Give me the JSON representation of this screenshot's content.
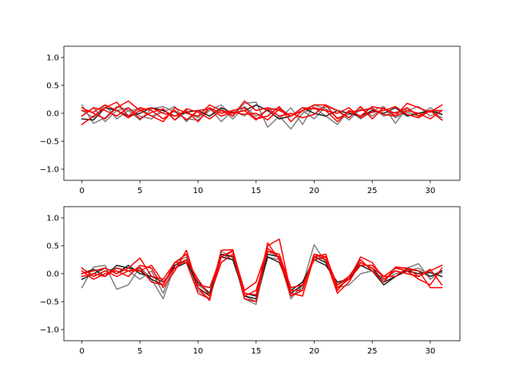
{
  "chart_data": [
    {
      "type": "line",
      "title": "",
      "xlabel": "",
      "ylabel": "",
      "xlim": [
        -1.55,
        32.55
      ],
      "ylim": [
        -1.2,
        1.2
      ],
      "xticks": [
        0,
        5,
        10,
        15,
        20,
        25,
        30
      ],
      "yticks": [
        -1.0,
        -0.5,
        0.0,
        0.5,
        1.0
      ],
      "ytick_labels": [
        "−1.0",
        "−0.5",
        "0.0",
        "0.5",
        "1.0"
      ],
      "grid": false,
      "colors": {
        "gray": "#808080",
        "black": "#222222",
        "red": "#ff0000"
      },
      "series": [
        {
          "color": "gray",
          "values": [
            0.15,
            -0.18,
            -0.08,
            0.12,
            0.05,
            -0.12,
            0.08,
            0.12,
            0.02,
            -0.1,
            -0.12,
            0.05,
            0.15,
            -0.05,
            0.18,
            0.2,
            -0.25,
            -0.05,
            -0.28,
            0.0,
            0.1,
            -0.05,
            -0.2,
            0.05,
            -0.1,
            0.05,
            0.12,
            -0.18,
            0.1,
            -0.05,
            0.05,
            -0.08
          ]
        },
        {
          "color": "gray",
          "values": [
            -0.05,
            0.1,
            -0.15,
            0.05,
            0.1,
            -0.05,
            -0.1,
            0.08,
            -0.12,
            0.02,
            -0.08,
            0.1,
            -0.15,
            0.05,
            -0.05,
            0.15,
            0.05,
            -0.1,
            0.1,
            -0.2,
            0.15,
            0.08,
            -0.08,
            -0.02,
            0.05,
            0.1,
            -0.05,
            0.02,
            0.05,
            0.12,
            -0.05,
            0.05
          ]
        },
        {
          "color": "gray",
          "values": [
            0.05,
            -0.08,
            0.15,
            -0.1,
            0.05,
            0.08,
            -0.05,
            0.02,
            0.12,
            -0.15,
            0.05,
            -0.05,
            0.08,
            -0.1,
            0.12,
            -0.05,
            0.05,
            0.1,
            -0.05,
            0.05,
            -0.1,
            0.12,
            0.05,
            -0.12,
            0.08,
            -0.05,
            0.1,
            -0.08,
            0.02,
            -0.05,
            0.1,
            -0.02
          ]
        },
        {
          "color": "black",
          "values": [
            -0.1,
            -0.12,
            0.1,
            0.05,
            -0.05,
            0.0,
            0.1,
            0.05,
            -0.05,
            0.02,
            0.05,
            -0.05,
            0.1,
            0.0,
            0.05,
            0.15,
            0.05,
            -0.1,
            -0.05,
            0.1,
            0.0,
            -0.05,
            0.05,
            0.0,
            -0.05,
            0.05,
            0.0,
            0.1,
            -0.05,
            0.0,
            0.05,
            -0.02
          ]
        },
        {
          "color": "red",
          "values": [
            -0.2,
            -0.05,
            0.1,
            0.2,
            -0.05,
            0.1,
            0.05,
            -0.1,
            0.05,
            -0.12,
            0.05,
            0.08,
            -0.05,
            0.02,
            -0.02,
            0.0,
            -0.12,
            0.08,
            -0.05,
            0.05,
            0.15,
            0.15,
            -0.1,
            0.02,
            0.05,
            0.08,
            -0.02,
            -0.05,
            0.18,
            0.1,
            0.02,
            0.15
          ]
        },
        {
          "color": "red",
          "values": [
            0.05,
            0.02,
            0.15,
            0.05,
            -0.08,
            0.05,
            -0.05,
            -0.15,
            0.1,
            0.0,
            -0.05,
            0.15,
            0.05,
            -0.05,
            0.22,
            0.05,
            0.1,
            0.05,
            -0.05,
            0.1,
            0.08,
            0.05,
            0.0,
            0.1,
            -0.08,
            0.02,
            0.05,
            0.12,
            -0.02,
            -0.08,
            0.05,
            -0.12
          ]
        },
        {
          "color": "red",
          "values": [
            0.1,
            0.0,
            -0.1,
            0.1,
            0.22,
            0.05,
            0.1,
            0.0,
            -0.05,
            0.05,
            -0.15,
            0.1,
            0.0,
            0.05,
            0.1,
            -0.1,
            -0.05,
            0.12,
            -0.15,
            0.05,
            0.1,
            0.05,
            -0.15,
            0.05,
            -0.05,
            0.12,
            0.08,
            0.0,
            0.1,
            -0.05,
            0.05,
            0.05
          ]
        },
        {
          "color": "red",
          "values": [
            -0.05,
            0.1,
            0.05,
            -0.05,
            0.1,
            -0.1,
            0.02,
            0.08,
            -0.12,
            0.08,
            0.02,
            -0.1,
            0.05,
            0.0,
            0.05,
            -0.12,
            0.08,
            -0.05,
            0.0,
            -0.08,
            -0.02,
            0.15,
            0.05,
            -0.08,
            0.12,
            -0.1,
            0.1,
            -0.05,
            0.05,
            0.0,
            -0.1,
            0.05
          ]
        }
      ]
    },
    {
      "type": "line",
      "title": "",
      "xlabel": "",
      "ylabel": "",
      "xlim": [
        -1.55,
        32.55
      ],
      "ylim": [
        -1.2,
        1.2
      ],
      "xticks": [
        0,
        5,
        10,
        15,
        20,
        25,
        30
      ],
      "yticks": [
        -1.0,
        -0.5,
        0.0,
        0.5,
        1.0
      ],
      "ytick_labels": [
        "−1.0",
        "−0.5",
        "0.0",
        "0.5",
        "1.0"
      ],
      "grid": false,
      "colors": {
        "gray": "#808080",
        "black": "#222222",
        "red": "#ff0000"
      },
      "series": [
        {
          "color": "gray",
          "values": [
            -0.25,
            0.12,
            0.15,
            -0.28,
            -0.2,
            0.12,
            -0.1,
            -0.45,
            0.15,
            0.25,
            -0.2,
            -0.35,
            0.4,
            0.3,
            -0.45,
            -0.55,
            0.4,
            0.3,
            -0.45,
            -0.2,
            0.52,
            0.2,
            -0.25,
            -0.2,
            0.0,
            0.05,
            -0.15,
            0.1,
            0.1,
            0.18,
            -0.1,
            0.05
          ]
        },
        {
          "color": "gray",
          "values": [
            0.1,
            -0.05,
            0.05,
            0.1,
            0.05,
            -0.1,
            0.05,
            -0.35,
            0.2,
            0.3,
            -0.3,
            -0.45,
            0.35,
            0.25,
            -0.4,
            -0.5,
            0.3,
            0.25,
            -0.4,
            -0.25,
            0.3,
            0.25,
            -0.2,
            -0.1,
            0.15,
            0.05,
            -0.1,
            0.0,
            0.05,
            0.1,
            -0.05,
            0.02
          ]
        },
        {
          "color": "black",
          "values": [
            0.0,
            0.08,
            -0.05,
            0.15,
            0.1,
            0.05,
            -0.1,
            -0.2,
            0.15,
            0.25,
            -0.25,
            -0.4,
            0.35,
            0.3,
            -0.4,
            -0.45,
            0.35,
            0.3,
            -0.35,
            -0.2,
            0.3,
            0.2,
            -0.2,
            -0.05,
            0.2,
            0.1,
            -0.15,
            -0.05,
            0.08,
            0.05,
            -0.05,
            0.05
          ]
        },
        {
          "color": "black",
          "values": [
            -0.1,
            0.0,
            0.1,
            0.0,
            0.15,
            0.0,
            -0.05,
            -0.15,
            0.1,
            0.2,
            -0.15,
            -0.35,
            0.3,
            0.25,
            -0.35,
            -0.4,
            0.3,
            0.2,
            -0.3,
            -0.15,
            0.25,
            0.15,
            -0.15,
            -0.1,
            0.15,
            0.05,
            -0.2,
            -0.05,
            0.05,
            0.0,
            0.02,
            -0.05
          ]
        },
        {
          "color": "red",
          "values": [
            0.05,
            -0.1,
            0.0,
            0.05,
            -0.05,
            0.15,
            0.1,
            -0.25,
            0.05,
            0.42,
            -0.25,
            -0.48,
            0.42,
            0.43,
            -0.35,
            -0.38,
            0.55,
            0.25,
            -0.4,
            -0.3,
            0.35,
            0.25,
            -0.35,
            -0.15,
            0.2,
            0.1,
            -0.05,
            0.1,
            0.05,
            -0.1,
            -0.2,
            0.1
          ]
        },
        {
          "color": "red",
          "values": [
            0.0,
            0.05,
            0.1,
            0.0,
            0.1,
            0.28,
            -0.05,
            -0.1,
            0.2,
            0.2,
            -0.35,
            -0.45,
            0.3,
            0.42,
            -0.45,
            -0.5,
            0.5,
            0.62,
            -0.35,
            -0.4,
            0.3,
            0.35,
            -0.3,
            -0.05,
            0.25,
            0.05,
            -0.15,
            0.12,
            0.1,
            -0.05,
            0.05,
            0.15
          ]
        },
        {
          "color": "red",
          "values": [
            0.1,
            -0.05,
            0.05,
            -0.05,
            0.05,
            0.1,
            -0.15,
            -0.2,
            0.2,
            0.35,
            -0.2,
            -0.25,
            0.3,
            0.4,
            -0.3,
            -0.15,
            0.45,
            0.3,
            -0.3,
            -0.3,
            0.35,
            0.3,
            -0.25,
            -0.1,
            0.3,
            0.2,
            -0.1,
            0.05,
            0.0,
            -0.05,
            0.08,
            -0.2
          ]
        },
        {
          "color": "red",
          "values": [
            -0.05,
            0.0,
            -0.05,
            0.1,
            0.05,
            0.05,
            0.15,
            -0.15,
            0.1,
            0.25,
            -0.1,
            -0.4,
            0.2,
            0.35,
            -0.4,
            -0.3,
            0.4,
            0.35,
            -0.25,
            -0.2,
            0.25,
            0.3,
            -0.2,
            -0.05,
            0.15,
            0.15,
            -0.05,
            -0.05,
            0.1,
            0.05,
            -0.25,
            -0.25
          ]
        }
      ]
    }
  ]
}
